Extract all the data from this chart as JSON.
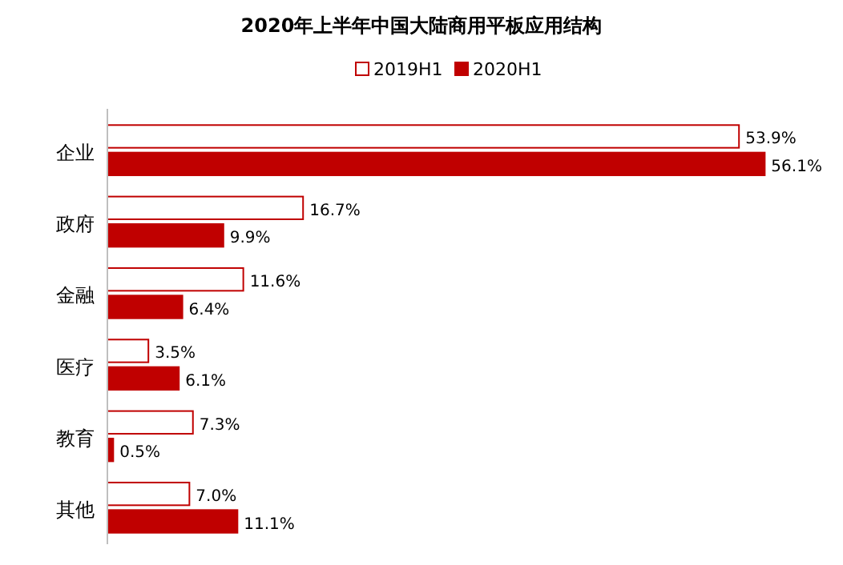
{
  "chart_data": {
    "type": "bar",
    "orientation": "horizontal",
    "title": "2020年上半年中国大陆商用平板应用结构",
    "categories": [
      "企业",
      "政府",
      "金融",
      "医疗",
      "教育",
      "其他"
    ],
    "series": [
      {
        "name": "2019H1",
        "color": "#ffffff",
        "values": [
          53.9,
          16.7,
          11.6,
          3.5,
          7.3,
          7.0
        ],
        "value_labels": [
          "53.9%",
          "16.7%",
          "11.6%",
          "3.5%",
          "7.3%",
          "7.0%"
        ]
      },
      {
        "name": "2020H1",
        "color": "#c00000",
        "values": [
          56.1,
          9.9,
          6.4,
          6.1,
          0.5,
          11.1
        ],
        "value_labels": [
          "56.1%",
          "9.9%",
          "6.4%",
          "6.1%",
          "0.5%",
          "11.1%"
        ]
      }
    ],
    "tick_labels": "y",
    "legend": "top"
  }
}
